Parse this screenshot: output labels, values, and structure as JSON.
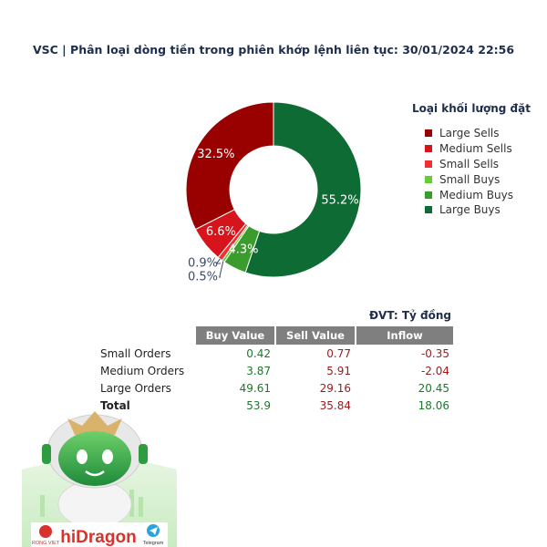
{
  "chart_data": {
    "type": "pie",
    "title": "VSC | Phân loại dòng tiền trong phiên khớp lệnh liên tục: 30/01/2024 22:56",
    "legend_title": "Loại khối lượng đặt",
    "legend_position": "right",
    "slices": [
      {
        "name": "Large Sells",
        "value": 32.5,
        "label": "32.5%",
        "color": "#990000"
      },
      {
        "name": "Medium Sells",
        "value": 6.6,
        "label": "6.6%",
        "color": "#d6141c"
      },
      {
        "name": "Small Sells",
        "value": 0.9,
        "label": "0.9%",
        "color": "#f03030"
      },
      {
        "name": "Small Buys",
        "value": 0.5,
        "label": "0.5%",
        "color": "#66cc33"
      },
      {
        "name": "Medium Buys",
        "value": 4.3,
        "label": "4.3%",
        "color": "#3a9c2c"
      },
      {
        "name": "Large Buys",
        "value": 55.2,
        "label": "55.2%",
        "color": "#0f6b34"
      }
    ]
  },
  "table": {
    "unit": "ĐVT: Tỷ đồng",
    "headers": [
      "Buy Value",
      "Sell Value",
      "Inflow"
    ],
    "rows": [
      {
        "label": "Small Orders",
        "buy": "0.42",
        "sell": "0.77",
        "inflow": "-0.35"
      },
      {
        "label": "Medium Orders",
        "buy": "3.87",
        "sell": "5.91",
        "inflow": "-2.04"
      },
      {
        "label": "Large Orders",
        "buy": "49.61",
        "sell": "29.16",
        "inflow": "20.45"
      },
      {
        "label": "Total",
        "buy": "53.9",
        "sell": "35.84",
        "inflow": "18.06"
      }
    ]
  },
  "branding": {
    "logo_left": "RONG VIET",
    "logo_main": "hiDragon",
    "logo_right": "Telegram"
  }
}
